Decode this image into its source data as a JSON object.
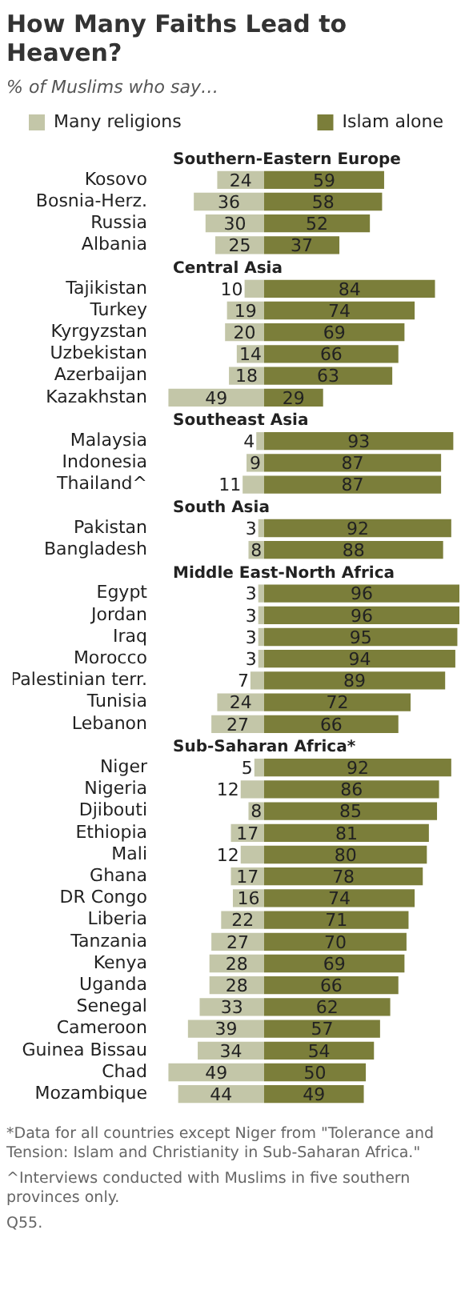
{
  "chart_data": [
    {
      "type": "bar",
      "orientation": "horizontal",
      "title": "How Many Faiths Lead to Heaven?",
      "subtitle": "% of Muslims who say…",
      "categories": [
        "Southern-Eastern Europe",
        "Kosovo",
        "Bosnia-Herz.",
        "Russia",
        "Albania",
        "Central Asia",
        "Tajikistan",
        "Turkey",
        "Kyrgyzstan",
        "Uzbekistan",
        "Azerbaijan",
        "Kazakhstan",
        "Southeast Asia",
        "Malaysia",
        "Indonesia",
        "Thailand^",
        "South Asia",
        "Pakistan",
        "Bangladesh",
        "Middle East-North Africa",
        "Egypt",
        "Jordan",
        "Iraq",
        "Morocco",
        "Palestinian terr.",
        "Tunisia",
        "Lebanon",
        "Sub-Saharan Africa*",
        "Niger",
        "Nigeria",
        "Djibouti",
        "Ethiopia",
        "Mali",
        "Ghana",
        "DR Congo",
        "Liberia",
        "Tanzania",
        "Kenya",
        "Uganda",
        "Senegal",
        "Cameroon",
        "Guinea Bissau",
        "Chad",
        "Mozambique"
      ],
      "series": [
        {
          "name": "Many religions",
          "color": "#c3c6a8",
          "values": [
            null,
            24,
            36,
            30,
            25,
            null,
            10,
            19,
            20,
            14,
            18,
            49,
            null,
            4,
            9,
            11,
            null,
            3,
            8,
            null,
            3,
            3,
            3,
            3,
            7,
            24,
            27,
            null,
            5,
            12,
            8,
            17,
            12,
            17,
            16,
            22,
            27,
            28,
            28,
            33,
            39,
            34,
            49,
            44
          ]
        }
      ],
      "xlim": [
        50,
        0
      ],
      "tick_labels": "y",
      "legend": "top left",
      "data_labels": true
    },
    {
      "type": "bar",
      "orientation": "horizontal",
      "categories": [
        null,
        null,
        null,
        null,
        null,
        null,
        null,
        null,
        null,
        null,
        null,
        null,
        null,
        null,
        null,
        null,
        null,
        null,
        null,
        null,
        null,
        null,
        null,
        null,
        null,
        null,
        null,
        null,
        null,
        null,
        null,
        null,
        null,
        null,
        null,
        null,
        null,
        null,
        null,
        null,
        null,
        null,
        null,
        null
      ],
      "series": [
        {
          "name": "Islam alone",
          "color": "#7b7e3a",
          "values": [
            null,
            59,
            58,
            52,
            37,
            null,
            84,
            74,
            69,
            66,
            63,
            29,
            null,
            93,
            87,
            87,
            null,
            92,
            88,
            null,
            96,
            96,
            95,
            94,
            89,
            72,
            66,
            null,
            92,
            86,
            85,
            81,
            80,
            78,
            74,
            71,
            70,
            69,
            66,
            62,
            57,
            54,
            50,
            49
          ]
        }
      ],
      "tick_labels": false,
      "legend": "top right",
      "data_labels": true,
      "annotations": [
        "*Data for all countries except Niger from \"Tolerance and Tension: Islam and Christianity in Sub-Saharan Africa.\"",
        "^Interviews conducted with Muslims in five southern provinces only.",
        "Q55."
      ]
    }
  ]
}
